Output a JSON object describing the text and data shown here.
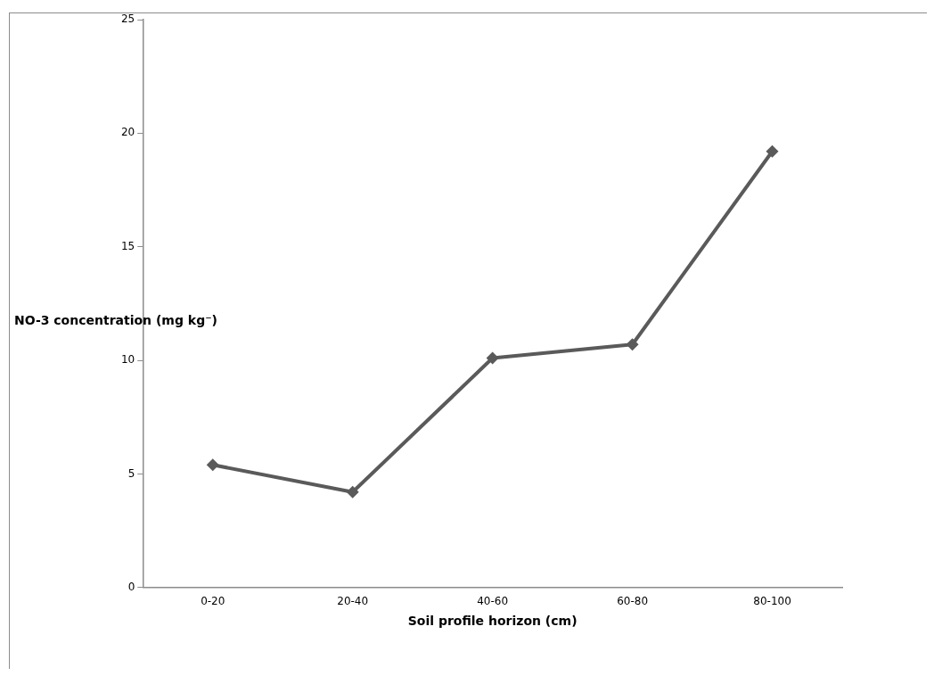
{
  "chart_data": {
    "type": "line",
    "xlabel": "Soil profile horizon (cm)",
    "ylabel": "NO-3 concentration (mg kg⁻)",
    "categories": [
      "0-20",
      "20-40",
      "40-60",
      "60-80",
      "80-100"
    ],
    "series": [
      {
        "color": "#5a5a5a",
        "values": [
          5.4,
          4.2,
          10.1,
          10.7,
          19.2
        ]
      }
    ],
    "ylim": [
      0,
      25
    ],
    "yticks": [
      0,
      5,
      10,
      15,
      20,
      25
    ],
    "grid": false,
    "legend": false,
    "marker": "diamond",
    "line_style": "solid"
  }
}
